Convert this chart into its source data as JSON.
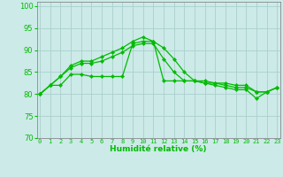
{
  "xlabel": "Humidité relative (%)",
  "background_color": "#cceae8",
  "grid_color": "#aacfcc",
  "line_color": "#00bb00",
  "ylim": [
    70,
    101
  ],
  "xlim": [
    -0.3,
    23.3
  ],
  "yticks": [
    70,
    75,
    80,
    85,
    90,
    95,
    100
  ],
  "xtick_labels": [
    "0",
    "1",
    "2",
    "3",
    "4",
    "5",
    "6",
    "7",
    "8",
    "9",
    "10",
    "11",
    "12",
    "13",
    "14",
    "15",
    "16",
    "17",
    "18",
    "19",
    "20",
    "21",
    "22",
    "23"
  ],
  "series": [
    [
      80.0,
      82.0,
      82.0,
      84.5,
      84.5,
      84.0,
      84.0,
      84.0,
      84.0,
      91.5,
      92.0,
      92.0,
      83.0,
      83.0,
      83.0,
      83.0,
      83.0,
      82.5,
      82.5,
      82.0,
      82.0,
      80.5,
      80.5,
      81.5
    ],
    [
      80.0,
      82.0,
      84.0,
      86.0,
      87.0,
      87.0,
      87.5,
      88.5,
      89.5,
      91.0,
      91.5,
      91.5,
      88.0,
      85.0,
      83.0,
      83.0,
      82.5,
      82.5,
      82.0,
      81.5,
      81.5,
      80.5,
      80.5,
      81.5
    ],
    [
      80.0,
      82.0,
      84.0,
      86.5,
      87.5,
      87.5,
      88.5,
      89.5,
      90.5,
      92.0,
      93.0,
      92.0,
      90.5,
      88.0,
      85.0,
      83.0,
      82.5,
      82.0,
      81.5,
      81.0,
      81.0,
      79.0,
      80.5,
      81.5
    ]
  ]
}
